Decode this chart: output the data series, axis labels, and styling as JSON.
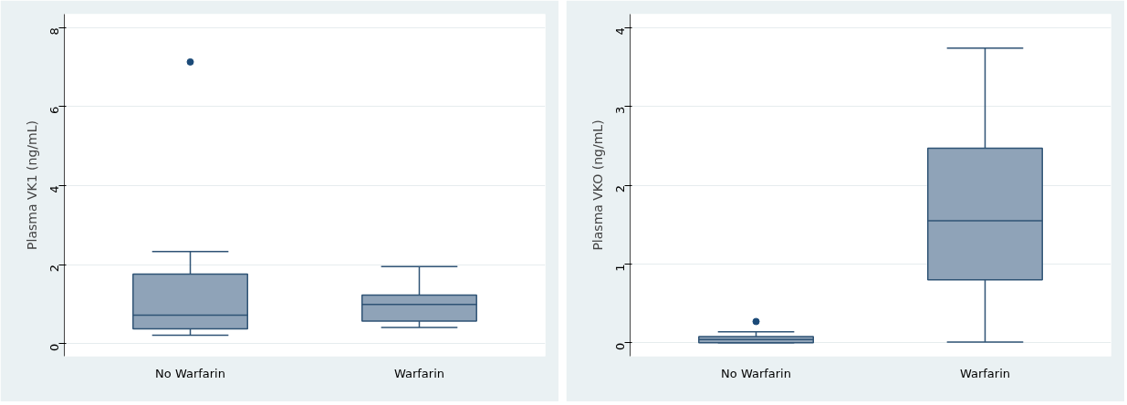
{
  "chart_data": [
    {
      "type": "box",
      "categories": [
        "No Warfarin",
        "Warfarin"
      ],
      "ylabel": "Plasma VK1 (ng/mL)",
      "ylim": [
        -0.32,
        8.34
      ],
      "yticks": [
        0,
        2,
        4,
        6,
        8
      ],
      "grid": "y",
      "series": [
        {
          "color": "#8fa3b8",
          "boxes": [
            {
              "low": 0.21,
              "q1": 0.37,
              "median": 0.72,
              "q3": 1.76,
              "high": 2.33,
              "outliers": [
                7.13
              ]
            },
            {
              "low": 0.41,
              "q1": 0.57,
              "median": 0.99,
              "q3": 1.23,
              "high": 1.95
            }
          ]
        }
      ]
    },
    {
      "type": "box",
      "categories": [
        "No Warfarin",
        "Warfarin"
      ],
      "ylabel": "Plasma VKO (ng/mL)",
      "ylim": [
        -0.17,
        4.17
      ],
      "yticks": [
        0,
        1,
        2,
        3,
        4
      ],
      "grid": "y",
      "series": [
        {
          "color": "#8fa3b8",
          "boxes": [
            {
              "low": 0.0,
              "q1": 0.0,
              "median": 0.04,
              "q3": 0.08,
              "high": 0.14,
              "outliers": [
                0.27
              ]
            },
            {
              "low": 0.01,
              "q1": 0.8,
              "median": 1.55,
              "q3": 2.47,
              "high": 3.74
            }
          ]
        }
      ]
    }
  ]
}
